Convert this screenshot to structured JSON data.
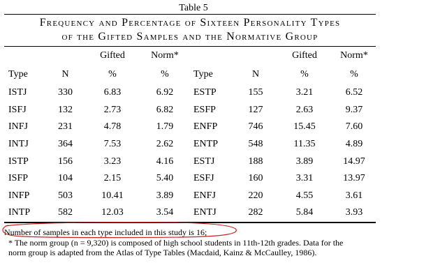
{
  "table_label": "Table 5",
  "title_lines": [
    "Frequency and Percentage of Sixteen Personality Types",
    "of the Gifted Samples and the Normative Group"
  ],
  "header": {
    "row1": [
      "",
      "",
      "Gifted",
      "Norm*",
      "",
      "",
      "Gifted",
      "Norm*"
    ],
    "row2": [
      "Type",
      "N",
      "%",
      "%",
      "Type",
      "N",
      "%",
      "%"
    ]
  },
  "rows": [
    [
      "ISTJ",
      "330",
      "6.83",
      "6.92",
      "ESTP",
      "155",
      "3.21",
      "6.52"
    ],
    [
      "ISFJ",
      "132",
      "2.73",
      "6.82",
      "ESFP",
      "127",
      "2.63",
      "9.37"
    ],
    [
      "INFJ",
      "231",
      "4.78",
      "1.79",
      "ENFP",
      "746",
      "15.45",
      "7.60"
    ],
    [
      "INTJ",
      "364",
      "7.53",
      "2.62",
      "ENTP",
      "548",
      "11.35",
      "4.89"
    ],
    [
      "ISTP",
      "156",
      "3.23",
      "4.16",
      "ESTJ",
      "188",
      "3.89",
      "14.97"
    ],
    [
      "ISFP",
      "104",
      "2.15",
      "5.40",
      "ESFJ",
      "160",
      "3.31",
      "13.97"
    ],
    [
      "INFP",
      "503",
      "10.41",
      "3.89",
      "ENFJ",
      "220",
      "4.55",
      "3.61"
    ],
    [
      "INTP",
      "582",
      "12.03",
      "3.54",
      "ENTJ",
      "282",
      "5.84",
      "3.93"
    ]
  ],
  "notes": {
    "samples_note": "Number of samples in each type included in this study is 16;",
    "norm_note_line1": "* The norm group (n = 9,320) is composed of high school students in 11th-12th grades. Data for the",
    "norm_note_line2": "norm group is adapted from the Atlas of Type Tables (Macdaid, Kainz & McCaulley, 1986)."
  },
  "colors": {
    "annotation_oval": "#cc2222",
    "text": "#000000"
  }
}
